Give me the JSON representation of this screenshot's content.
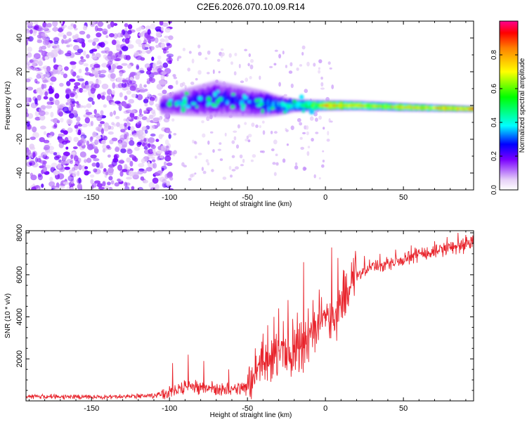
{
  "title": "C2E6.2026.070.10.09.R14",
  "chart_data": [
    {
      "type": "heatmap",
      "name": "spectrogram",
      "xlabel": "Height of straight line (km)",
      "ylabel": "Frequency (Hz)",
      "xlim": [
        -192,
        95
      ],
      "ylim": [
        -50,
        50
      ],
      "xticks": [
        -150,
        -100,
        -50,
        0,
        50
      ],
      "yticks": [
        -40,
        -20,
        0,
        20,
        40
      ],
      "colorbar": {
        "label": "Normalized spectral amplitude",
        "range": [
          0,
          1
        ],
        "ticks": [
          0.0,
          0.2,
          0.4,
          0.6,
          0.8
        ]
      },
      "trend": {
        "noise_region_x": [
          -192,
          -105
        ],
        "signal_band_center_hz": [
          [
            -105,
            0
          ],
          [
            -90,
            2
          ],
          [
            -70,
            4
          ],
          [
            -50,
            2
          ],
          [
            -30,
            0
          ],
          [
            -10,
            0
          ],
          [
            20,
            0
          ],
          [
            50,
            -1
          ],
          [
            92,
            -2
          ]
        ],
        "signal_band_halfwidth_hz": [
          [
            -105,
            4
          ],
          [
            -90,
            6
          ],
          [
            -70,
            8
          ],
          [
            -40,
            6
          ],
          [
            -20,
            3
          ],
          [
            0,
            2.5
          ],
          [
            50,
            2
          ],
          [
            92,
            1.5
          ]
        ],
        "peak_amplitude": [
          [
            -105,
            0.25
          ],
          [
            -80,
            0.3
          ],
          [
            -50,
            0.3
          ],
          [
            -20,
            0.45
          ],
          [
            0,
            0.9
          ],
          [
            30,
            0.8
          ],
          [
            60,
            0.85
          ],
          [
            92,
            0.95
          ]
        ]
      }
    },
    {
      "type": "line",
      "name": "snr",
      "xlabel": "Height of straight line (km)",
      "ylabel": "SNR (10 * v/v)",
      "xlim": [
        -192,
        95
      ],
      "ylim": [
        0,
        8100
      ],
      "xticks": [
        -150,
        -100,
        -50,
        0,
        50
      ],
      "yticks": [
        2000,
        4000,
        6000,
        8000
      ],
      "color": "#e8232b",
      "trend": [
        [
          -192,
          200
        ],
        [
          -130,
          200
        ],
        [
          -110,
          250
        ],
        [
          -100,
          400
        ],
        [
          -90,
          650
        ],
        [
          -80,
          650
        ],
        [
          -70,
          550
        ],
        [
          -60,
          500
        ],
        [
          -50,
          600
        ],
        [
          -45,
          1200
        ],
        [
          -40,
          1700
        ],
        [
          -35,
          2000
        ],
        [
          -30,
          2300
        ],
        [
          -25,
          2200
        ],
        [
          -20,
          2200
        ],
        [
          -15,
          2500
        ],
        [
          -10,
          3000
        ],
        [
          -5,
          3400
        ],
        [
          0,
          3900
        ],
        [
          5,
          3700
        ],
        [
          10,
          4700
        ],
        [
          15,
          5500
        ],
        [
          20,
          6000
        ],
        [
          30,
          6400
        ],
        [
          40,
          6500
        ],
        [
          50,
          6700
        ],
        [
          60,
          7000
        ],
        [
          70,
          7100
        ],
        [
          80,
          7300
        ],
        [
          90,
          7400
        ],
        [
          95,
          7500
        ]
      ],
      "spikes": [
        [
          -98,
          1800
        ],
        [
          -88,
          2200
        ],
        [
          -78,
          1900
        ],
        [
          -62,
          1500
        ],
        [
          -45,
          2500
        ],
        [
          -40,
          3200
        ],
        [
          -37,
          3600
        ],
        [
          -33,
          4000
        ],
        [
          -30,
          4400
        ],
        [
          -27,
          3800
        ],
        [
          -24,
          4800
        ],
        [
          -21,
          3900
        ],
        [
          -18,
          4200
        ],
        [
          -14,
          6600
        ],
        [
          -11,
          4400
        ],
        [
          -8,
          4800
        ],
        [
          -4,
          5300
        ],
        [
          4,
          7300
        ],
        [
          8,
          6800
        ],
        [
          12,
          6200
        ],
        [
          18,
          6800
        ],
        [
          25,
          6900
        ],
        [
          35,
          7000
        ],
        [
          45,
          7200
        ],
        [
          55,
          7400
        ],
        [
          62,
          7300
        ],
        [
          70,
          7600
        ],
        [
          78,
          7800
        ],
        [
          85,
          8000
        ],
        [
          90,
          7900
        ]
      ]
    }
  ]
}
